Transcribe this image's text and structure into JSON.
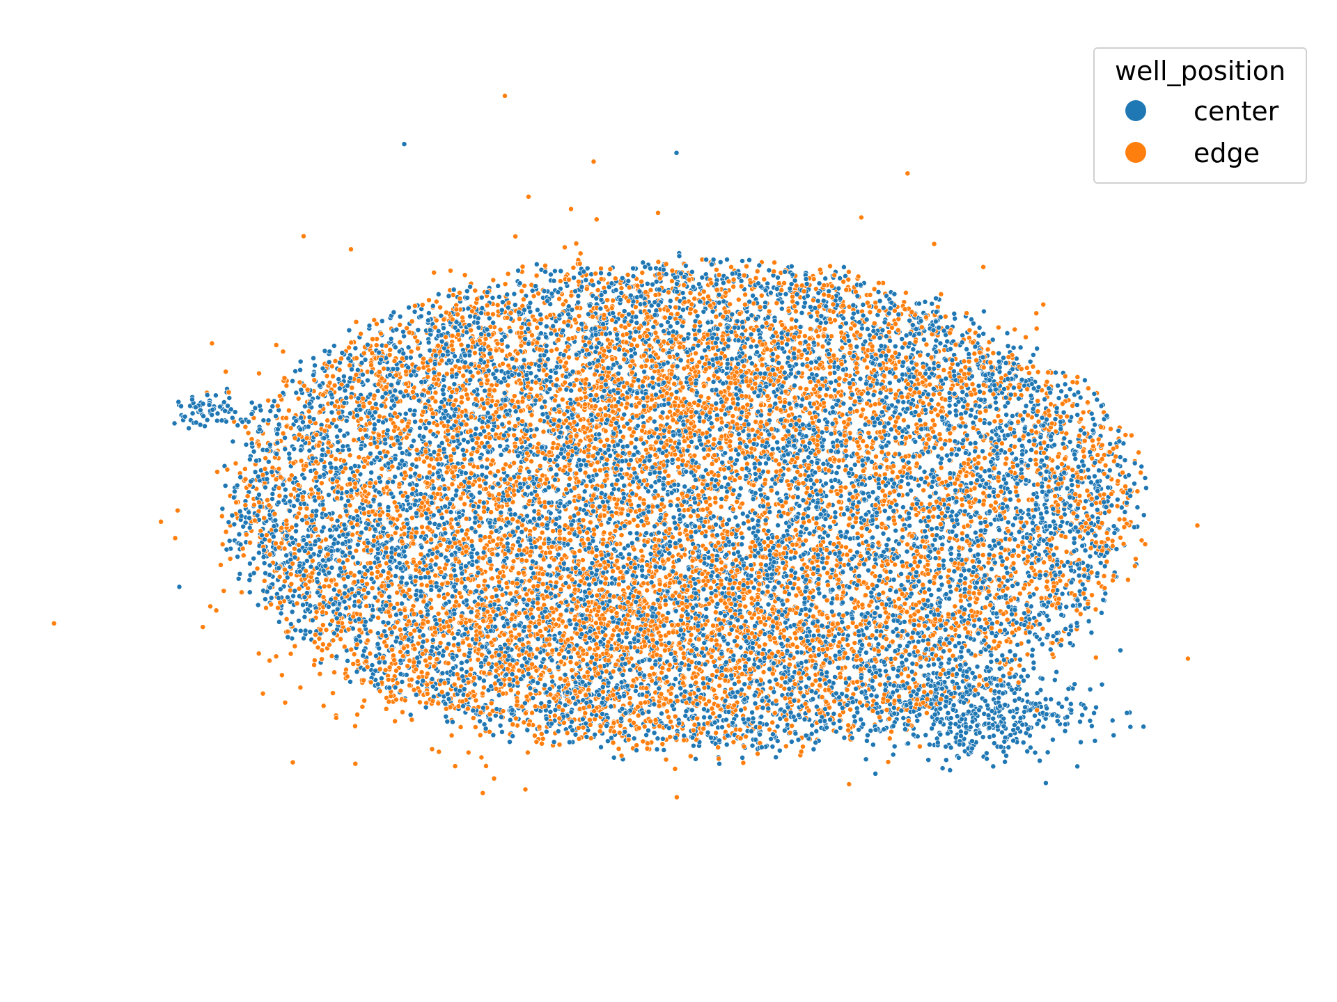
{
  "chart_data": {
    "type": "scatter",
    "title": "",
    "xlabel": "",
    "ylabel": "",
    "axes_visible": false,
    "grid": false,
    "legend": {
      "title": "well_position",
      "placement": "top-right",
      "entries": [
        {
          "label": "center",
          "color": "#1f77b4"
        },
        {
          "label": "edge",
          "color": "#ff7f0e"
        }
      ]
    },
    "xlim": [
      -10,
      10
    ],
    "ylim": [
      -10,
      10
    ],
    "series": [
      {
        "name": "center",
        "color": "#1f77b4",
        "approx_count": 9000,
        "shape": {
          "cx": 0.0,
          "cy": 0.0,
          "rx": 7.6,
          "ry": 5.6
        },
        "dense_clusters": [
          {
            "x": 5.0,
            "y": -4.7,
            "spread": 0.9,
            "weight": 0.05
          },
          {
            "x": -8.0,
            "y": 2.2,
            "spread": 0.35,
            "weight": 0.008
          },
          {
            "x": -6.3,
            "y": -0.9,
            "spread": 0.6,
            "weight": 0.01
          }
        ],
        "outliers": [
          [
            -8.5,
            -1.8
          ],
          [
            -4.7,
            8.3
          ],
          [
            -0.1,
            8.1
          ]
        ]
      },
      {
        "name": "edge",
        "color": "#ff7f0e",
        "approx_count": 8000,
        "shape": {
          "cx": 0.0,
          "cy": 0.0,
          "rx": 7.6,
          "ry": 5.6
        },
        "dense_clusters": [
          {
            "x": -0.5,
            "y": 2.5,
            "spread": 2.5,
            "weight": 0.15
          },
          {
            "x": -1.0,
            "y": -2.5,
            "spread": 2.5,
            "weight": 0.15
          }
        ],
        "outliers": [
          [
            -3.0,
            9.4
          ],
          [
            -2.6,
            7.1
          ],
          [
            -1.5,
            7.9
          ],
          [
            -6.4,
            6.2
          ],
          [
            -5.6,
            5.9
          ],
          [
            8.7,
            -0.4
          ],
          [
            -7.8,
            -1.3
          ]
        ]
      }
    ]
  }
}
